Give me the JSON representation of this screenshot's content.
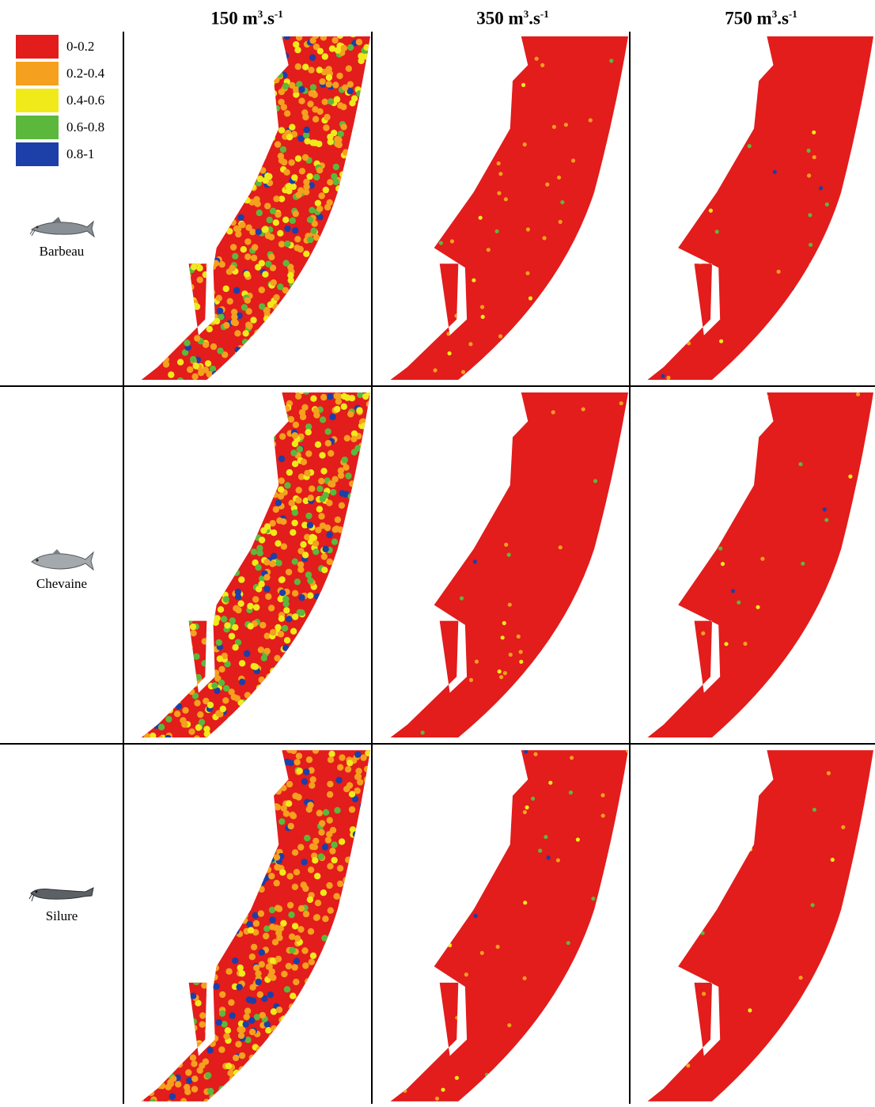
{
  "columns": [
    {
      "value": "150",
      "unit": " m",
      "exp1": "3",
      "mid": ".s",
      "exp2": "-1"
    },
    {
      "value": "350",
      "unit": " m",
      "exp1": "3",
      "mid": ".s",
      "exp2": "-1"
    },
    {
      "value": "750",
      "unit": " m",
      "exp1": "3",
      "mid": ".s",
      "exp2": "-1"
    }
  ],
  "legend": [
    {
      "label": "0-0.2",
      "color": "#e31c1c"
    },
    {
      "label": "0.2-0.4",
      "color": "#f5a01e"
    },
    {
      "label": "0.4-0.6",
      "color": "#f0ea1a"
    },
    {
      "label": "0.6-0.8",
      "color": "#5cb83c"
    },
    {
      "label": "0.8-1",
      "color": "#1c3fa8"
    }
  ],
  "species": [
    {
      "name": "Barbeau",
      "icon": "barbel-fish-icon"
    },
    {
      "name": "Chevaine",
      "icon": "chub-fish-icon"
    },
    {
      "name": "Silure",
      "icon": "catfish-icon"
    }
  ],
  "panels": [
    [
      {
        "dominant": "mixed",
        "mix": [
          0.28,
          0.34,
          0.2,
          0.12,
          0.06
        ]
      },
      {
        "dominant": "0-0.2",
        "mix": [
          0.82,
          0.12,
          0.03,
          0.02,
          0.01
        ]
      },
      {
        "dominant": "0-0.2",
        "mix": [
          0.93,
          0.04,
          0.01,
          0.01,
          0.01
        ]
      }
    ],
    [
      {
        "dominant": "mixed",
        "mix": [
          0.3,
          0.26,
          0.2,
          0.16,
          0.08
        ]
      },
      {
        "dominant": "0-0.2",
        "mix": [
          0.88,
          0.06,
          0.02,
          0.03,
          0.01
        ]
      },
      {
        "dominant": "0-0.2",
        "mix": [
          0.94,
          0.02,
          0.01,
          0.02,
          0.01
        ]
      }
    ],
    [
      {
        "dominant": "mixed",
        "mix": [
          0.4,
          0.38,
          0.08,
          0.06,
          0.08
        ]
      },
      {
        "dominant": "0-0.2",
        "mix": [
          0.86,
          0.08,
          0.02,
          0.02,
          0.02
        ]
      },
      {
        "dominant": "0-0.2",
        "mix": [
          0.95,
          0.02,
          0.01,
          0.01,
          0.01
        ]
      }
    ]
  ]
}
